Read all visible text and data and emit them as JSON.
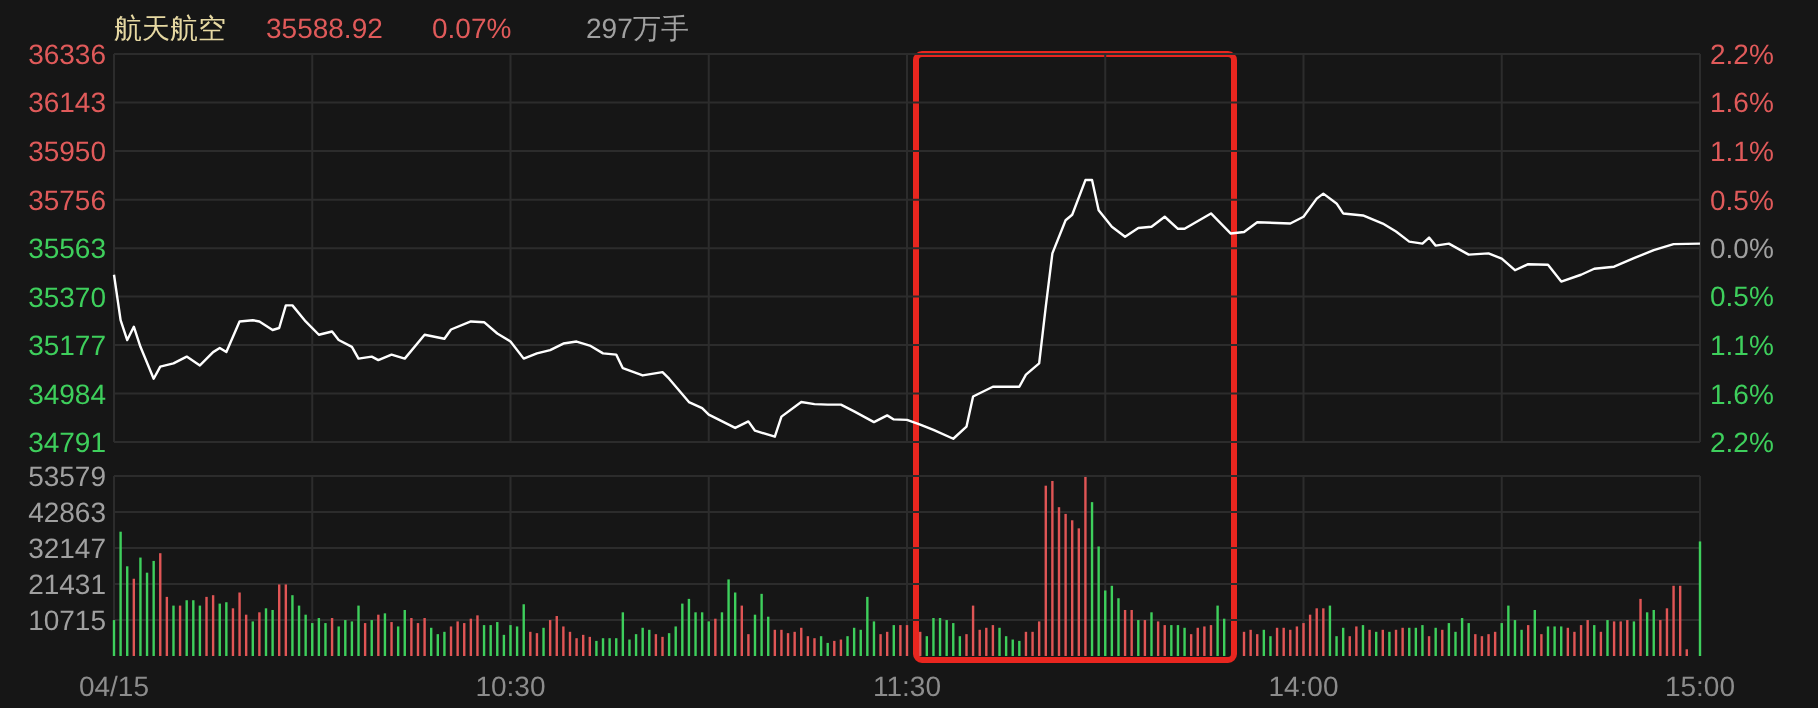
{
  "chart_data": [
    {
      "type": "line",
      "title": "航天航空",
      "annotations": [
        "35588.92",
        "0.07%",
        "297万手"
      ],
      "categories": [
        null,
        null,
        null,
        null,
        null,
        null,
        null,
        null,
        null,
        null,
        null,
        null,
        null,
        null,
        null,
        null,
        null,
        null,
        null,
        null,
        null,
        null,
        null,
        null,
        null,
        null,
        null,
        null,
        null,
        null,
        null,
        null,
        null,
        null,
        null,
        null,
        null,
        null,
        null,
        null,
        null,
        null,
        null,
        null,
        null,
        null,
        null,
        null,
        null,
        null,
        null,
        null,
        null,
        null,
        null,
        null,
        null,
        null,
        null,
        null,
        null,
        null,
        null,
        null,
        null,
        null,
        null,
        null,
        null,
        null,
        null,
        null,
        null,
        null,
        null,
        null,
        null,
        null,
        null,
        null,
        null,
        null,
        null,
        null,
        null,
        null,
        null,
        null,
        null,
        null,
        null,
        null,
        null,
        null,
        null,
        null,
        null,
        null,
        null,
        null,
        null,
        null,
        null,
        null,
        null,
        null,
        null,
        null,
        null,
        null,
        null,
        null,
        null,
        null,
        null,
        null,
        null,
        null,
        null,
        null,
        null,
        null,
        null,
        null,
        null,
        null,
        null,
        null,
        null,
        null,
        null,
        null,
        null,
        null,
        null,
        null,
        null,
        null,
        null,
        null,
        null,
        null,
        null,
        null,
        null,
        null,
        null,
        null,
        null,
        null,
        null,
        null,
        null,
        null,
        null,
        null,
        null,
        null,
        null,
        null,
        null,
        null,
        null,
        null,
        null,
        null,
        null,
        null,
        null,
        null,
        null,
        null,
        null,
        null,
        null,
        null,
        null,
        null,
        null,
        null,
        null,
        null,
        null,
        null,
        null,
        null,
        null,
        null,
        null,
        null,
        null,
        null,
        null,
        null,
        null,
        null,
        null,
        null,
        null,
        null,
        null,
        null,
        null,
        null,
        null,
        null,
        null,
        null,
        null,
        null,
        null,
        null,
        null,
        null,
        null,
        null,
        null,
        null,
        null,
        null,
        null,
        null,
        null,
        null,
        null,
        null,
        null,
        null,
        null,
        null,
        null,
        null,
        null,
        null,
        null,
        null,
        null,
        null,
        null,
        null,
        null
      ],
      "ylim": [
        34791,
        36336
      ],
      "yticks": [
        34791,
        34984,
        35177,
        35370,
        35563,
        35756,
        35950,
        36143,
        36336
      ],
      "y2lim": [
        -2.17,
        2.17
      ],
      "y2ticks": [
        {
          "value": -2.17,
          "label": "2.2%"
        },
        {
          "value": -1.63,
          "label": "1.6%"
        },
        {
          "value": -1.09,
          "label": "1.1%"
        },
        {
          "value": -0.54,
          "label": "0.5%"
        },
        {
          "value": 0,
          "label": "0.0%"
        },
        {
          "value": 0.54,
          "label": "0.5%"
        },
        {
          "value": 1.09,
          "label": "1.1%"
        },
        {
          "value": 1.63,
          "label": "1.6%"
        },
        {
          "value": 2.17,
          "label": "2.2%"
        }
      ],
      "tick_labels": "y",
      "grid": true,
      "line_style": "solid",
      "series": [
        {
          "color": "#ffffff",
          "values": [
            35457,
            35276,
            35197,
            35250,
            35170,
            null,
            35043,
            35091,
            null,
            35104,
            null,
            35131,
            null,
            35096,
            null,
            35149,
            35165,
            35149,
            null,
            35271,
            null,
            35276,
            35271,
            null,
            35237,
            35245,
            35335,
            35335,
            null,
            35271,
            null,
            35218,
            null,
            35231,
            35197,
            null,
            35170,
            35123,
            null,
            35131,
            35117,
            null,
            35139,
            null,
            35123,
            null,
            null,
            35218,
            null,
            null,
            35202,
            35239,
            null,
            null,
            35271,
            null,
            35268,
            null,
            35223,
            null,
            35191,
            null,
            35123,
            null,
            35144,
            null,
            35157,
            null,
            35183,
            null,
            35191,
            null,
            35175,
            null,
            35144,
            null,
            35139,
            35085,
            null,
            null,
            35056,
            null,
            null,
            35069,
            35043,
            null,
            null,
            34950,
            null,
            34926,
            34900,
            null,
            null,
            null,
            34847,
            null,
            34873,
            34836,
            null,
            null,
            34812,
            34892,
            null,
            null,
            34950,
            null,
            34942,
            null,
            34940,
            null,
            34940,
            null,
            34913,
            null,
            null,
            34870,
            null,
            34897,
            34881,
            null,
            34879,
            null,
            34860,
            null,
            34839,
            null,
            null,
            34804,
            null,
            34852,
            34972,
            null,
            null,
            35011,
            null,
            null,
            null,
            35011,
            35059,
            null,
            35104,
            35330,
            35542,
            null,
            35674,
            35696,
            null,
            35834,
            35834,
            35714,
            null,
            35648,
            null,
            35608,
            null,
            35643,
            null,
            35648,
            null,
            35688,
            null,
            35640,
            35640,
            null,
            null,
            null,
            35701,
            null,
            null,
            35621,
            null,
            35627,
            null,
            35666,
            null,
            null,
            null,
            null,
            35661,
            null,
            35688,
            null,
            35760,
            35780,
            null,
            35741,
            35701,
            null,
            null,
            35693,
            null,
            null,
            35661,
            null,
            35629,
            null,
            35589,
            null,
            35581,
            35605,
            35573,
            null,
            35581,
            null,
            null,
            35537,
            null,
            null,
            35542,
            null,
            35521,
            null,
            35475,
            null,
            35499,
            null,
            null,
            35497,
            null,
            35430,
            null,
            null,
            35457,
            null,
            35481,
            null,
            null,
            35489,
            null,
            null,
            35523,
            null,
            null,
            35555,
            null,
            null,
            35579,
            null,
            null,
            null,
            35581
          ]
        }
      ]
    },
    {
      "type": "bar",
      "categories": [
        "04/15",
        null,
        null,
        null,
        null,
        null,
        null,
        null,
        null,
        null,
        null,
        null,
        null,
        null,
        null,
        null,
        null,
        null,
        null,
        null,
        null,
        null,
        null,
        null,
        null,
        null,
        null,
        null,
        null,
        null,
        null,
        null,
        null,
        null,
        null,
        null,
        null,
        null,
        null,
        null,
        null,
        null,
        null,
        null,
        null,
        null,
        null,
        null,
        null,
        null,
        null,
        null,
        null,
        null,
        null,
        null,
        null,
        null,
        null,
        null,
        "10:30",
        null,
        null,
        null,
        null,
        null,
        null,
        null,
        null,
        null,
        null,
        null,
        null,
        null,
        null,
        null,
        null,
        null,
        null,
        null,
        null,
        null,
        null,
        null,
        null,
        null,
        null,
        null,
        null,
        null,
        null,
        null,
        null,
        null,
        null,
        null,
        null,
        null,
        null,
        null,
        null,
        null,
        null,
        null,
        null,
        null,
        null,
        null,
        null,
        null,
        null,
        null,
        null,
        null,
        null,
        null,
        null,
        null,
        null,
        null,
        "11:30",
        null,
        null,
        null,
        null,
        null,
        null,
        null,
        null,
        null,
        null,
        null,
        null,
        null,
        null,
        null,
        null,
        null,
        null,
        null,
        null,
        null,
        null,
        null,
        null,
        null,
        null,
        null,
        null,
        null,
        null,
        null,
        null,
        null,
        null,
        null,
        null,
        null,
        null,
        null,
        null,
        null,
        null,
        null,
        null,
        null,
        null,
        null,
        null,
        null,
        null,
        null,
        null,
        null,
        null,
        null,
        null,
        null,
        null,
        null,
        "14:00",
        null,
        null,
        null,
        null,
        null,
        null,
        null,
        null,
        null,
        null,
        null,
        null,
        null,
        null,
        null,
        null,
        null,
        null,
        null,
        null,
        null,
        null,
        null,
        null,
        null,
        null,
        null,
        null,
        null,
        null,
        null,
        null,
        null,
        null,
        null,
        null,
        null,
        null,
        null,
        null,
        null,
        null,
        null,
        null,
        null,
        null,
        null,
        null,
        null,
        null,
        null,
        null,
        null,
        null,
        null,
        null,
        null,
        null,
        null,
        "15:00"
      ],
      "ylim": [
        0,
        53579
      ],
      "yticks": [
        10715,
        21431,
        32147,
        42863,
        53579
      ],
      "grid": true,
      "values": [
        10700,
        37000,
        26700,
        23000,
        29300,
        24800,
        28300,
        30600,
        17600,
        15000,
        15000,
        16600,
        16600,
        15000,
        17600,
        18100,
        15600,
        16000,
        14200,
        18900,
        12300,
        10300,
        13000,
        14200,
        13700,
        21300,
        21300,
        18100,
        15000,
        12300,
        9800,
        11300,
        9800,
        11300,
        8800,
        10700,
        10300,
        15000,
        9800,
        10700,
        12300,
        12700,
        10100,
        8800,
        13700,
        11300,
        9800,
        11300,
        8400,
        6500,
        7200,
        8800,
        10300,
        9800,
        11100,
        12100,
        9200,
        9200,
        10100,
        6300,
        9200,
        8800,
        15400,
        7200,
        6800,
        8400,
        10700,
        11900,
        8800,
        7200,
        5300,
        6300,
        5700,
        4500,
        5300,
        5300,
        5300,
        13000,
        4900,
        6500,
        8400,
        7800,
        6500,
        5700,
        6800,
        8800,
        15600,
        17000,
        13000,
        13000,
        10300,
        11100,
        13000,
        22800,
        18900,
        15000,
        6500,
        12300,
        18500,
        11700,
        7800,
        7800,
        6800,
        7200,
        8400,
        5900,
        5300,
        5900,
        3900,
        4500,
        4900,
        5900,
        8400,
        7800,
        17600,
        10300,
        6500,
        7200,
        9200,
        9200,
        9200,
        null,
        7200,
        5900,
        11300,
        11300,
        10700,
        9800,
        5900,
        6500,
        15000,
        7800,
        8400,
        9200,
        8400,
        5900,
        4900,
        4500,
        7200,
        7200,
        10300,
        50700,
        52100,
        44300,
        42300,
        40400,
        38000,
        53300,
        45800,
        32600,
        19500,
        20900,
        17200,
        13700,
        13700,
        10700,
        10700,
        13000,
        10300,
        9200,
        9200,
        9200,
        8400,
        6500,
        8400,
        8800,
        9200,
        15000,
        11100,
        null,
        null,
        7200,
        7800,
        6500,
        7800,
        5900,
        8400,
        8400,
        7800,
        8800,
        9800,
        12300,
        14200,
        14200,
        15000,
        5900,
        8400,
        5900,
        8800,
        9200,
        7800,
        7200,
        7800,
        7200,
        7800,
        8400,
        8400,
        8400,
        9200,
        5900,
        8400,
        7800,
        9800,
        7200,
        11300,
        9800,
        6500,
        5900,
        6500,
        7200,
        9800,
        15000,
        10700,
        7800,
        9200,
        13700,
        6500,
        8800,
        8800,
        8800,
        8400,
        7200,
        9200,
        10700,
        9200,
        7200,
        10700,
        10300,
        10300,
        10700,
        10300,
        17000,
        13000,
        13700,
        10700,
        14200,
        20900,
        20900,
        2000,
        null,
        34100
      ],
      "colors": [
        "#3ecf5c",
        "#3ecf5c",
        "#3ecf5c",
        "#e05555",
        "#3ecf5c",
        "#3ecf5c",
        "#3ecf5c",
        "#e05555",
        "#e05555",
        "#3ecf5c",
        "#e05555",
        "#3ecf5c",
        "#3ecf5c",
        "#3ecf5c",
        "#e05555",
        "#e05555",
        "#3ecf5c",
        "#3ecf5c",
        "#e05555",
        "#e05555",
        "#e05555",
        "#3ecf5c",
        "#e05555",
        "#3ecf5c",
        "#3ecf5c",
        "#e05555",
        "#e05555",
        "#3ecf5c",
        "#3ecf5c",
        "#3ecf5c",
        "#3ecf5c",
        "#3ecf5c",
        "#3ecf5c",
        "#e05555",
        "#3ecf5c",
        "#3ecf5c",
        "#3ecf5c",
        "#3ecf5c",
        "#e05555",
        "#3ecf5c",
        "#e05555",
        "#3ecf5c",
        "#e05555",
        "#3ecf5c",
        "#3ecf5c",
        "#e05555",
        "#e05555",
        "#e05555",
        "#3ecf5c",
        "#3ecf5c",
        "#3ecf5c",
        "#e05555",
        "#e05555",
        "#e05555",
        "#e05555",
        "#e05555",
        "#3ecf5c",
        "#3ecf5c",
        "#3ecf5c",
        "#3ecf5c",
        "#3ecf5c",
        "#3ecf5c",
        "#3ecf5c",
        "#e05555",
        "#e05555",
        "#3ecf5c",
        "#e05555",
        "#e05555",
        "#e05555",
        "#e05555",
        "#e05555",
        "#e05555",
        "#e05555",
        "#3ecf5c",
        "#3ecf5c",
        "#3ecf5c",
        "#3ecf5c",
        "#3ecf5c",
        "#3ecf5c",
        "#3ecf5c",
        "#3ecf5c",
        "#3ecf5c",
        "#e05555",
        "#e05555",
        "#3ecf5c",
        "#3ecf5c",
        "#3ecf5c",
        "#3ecf5c",
        "#3ecf5c",
        "#3ecf5c",
        "#3ecf5c",
        "#e05555",
        "#3ecf5c",
        "#3ecf5c",
        "#3ecf5c",
        "#e05555",
        "#e05555",
        "#3ecf5c",
        "#3ecf5c",
        "#3ecf5c",
        "#e05555",
        "#e05555",
        "#e05555",
        "#e05555",
        "#e05555",
        "#e05555",
        "#e05555",
        "#3ecf5c",
        "#3ecf5c",
        "#e05555",
        "#e05555",
        "#3ecf5c",
        "#3ecf5c",
        "#3ecf5c",
        "#3ecf5c",
        "#3ecf5c",
        "#e05555",
        "#e05555",
        "#3ecf5c",
        "#e05555",
        "#e05555",
        null,
        "#e05555",
        "#3ecf5c",
        "#3ecf5c",
        "#3ecf5c",
        "#3ecf5c",
        "#3ecf5c",
        "#3ecf5c",
        "#e05555",
        "#e05555",
        "#e05555",
        "#e05555",
        "#e05555",
        "#3ecf5c",
        "#3ecf5c",
        "#3ecf5c",
        "#3ecf5c",
        "#e05555",
        "#e05555",
        "#e05555",
        "#e05555",
        "#e05555",
        "#e05555",
        "#e05555",
        "#e05555",
        "#e05555",
        "#e05555",
        "#3ecf5c",
        "#3ecf5c",
        "#3ecf5c",
        "#3ecf5c",
        "#3ecf5c",
        "#e05555",
        "#e05555",
        "#3ecf5c",
        "#e05555",
        "#3ecf5c",
        "#e05555",
        "#e05555",
        "#3ecf5c",
        "#3ecf5c",
        "#3ecf5c",
        "#e05555",
        "#e05555",
        "#e05555",
        "#e05555",
        "#3ecf5c",
        "#3ecf5c",
        null,
        null,
        "#e05555",
        "#e05555",
        "#e05555",
        "#3ecf5c",
        "#3ecf5c",
        "#e05555",
        "#e05555",
        "#e05555",
        "#e05555",
        "#e05555",
        "#e05555",
        "#e05555",
        "#e05555",
        "#3ecf5c",
        "#3ecf5c",
        "#3ecf5c",
        "#e05555",
        "#e05555",
        "#3ecf5c",
        "#e05555",
        "#3ecf5c",
        "#e05555",
        "#3ecf5c",
        "#e05555",
        "#e05555",
        "#3ecf5c",
        "#3ecf5c",
        "#3ecf5c",
        "#e05555",
        "#3ecf5c",
        "#e05555",
        "#3ecf5c",
        "#3ecf5c",
        "#3ecf5c",
        "#3ecf5c",
        "#e05555",
        "#e05555",
        "#e05555",
        "#e05555",
        "#3ecf5c",
        "#3ecf5c",
        "#3ecf5c",
        "#3ecf5c",
        "#e05555",
        "#3ecf5c",
        "#e05555",
        "#3ecf5c",
        "#3ecf5c",
        "#3ecf5c",
        "#e05555",
        "#e05555",
        "#e05555",
        "#e05555",
        "#3ecf5c",
        "#e05555",
        "#3ecf5c",
        "#e05555",
        "#e05555",
        "#e05555",
        "#3ecf5c",
        "#e05555",
        "#3ecf5c",
        "#3ecf5c",
        "#e05555",
        "#e05555",
        "#e05555",
        "#e05555",
        "#e05555",
        null,
        "#3ecf5c"
      ]
    }
  ]
}
